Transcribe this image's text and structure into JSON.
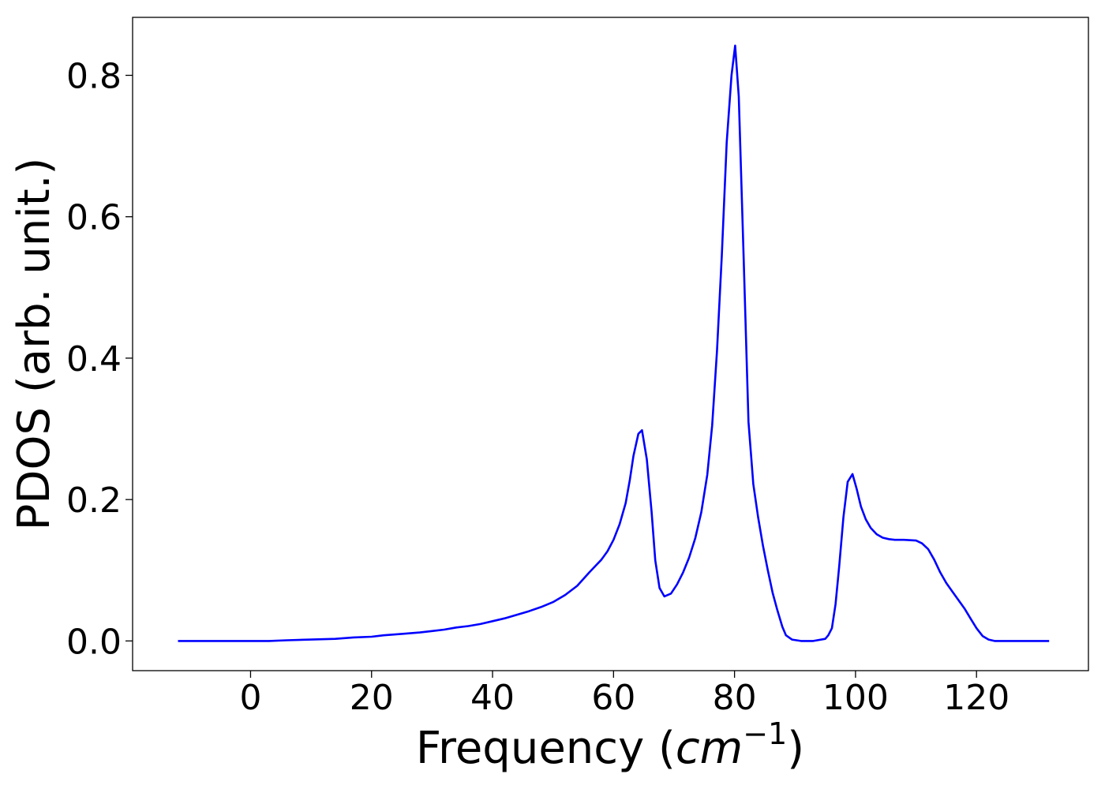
{
  "chart_data": {
    "type": "line",
    "xlabel_text": "Frequency (",
    "xlabel_math_base": "cm",
    "xlabel_math_exp": "−1",
    "xlabel_close": ")",
    "ylabel": "PDOS (arb. unit.)",
    "xlim": [
      -19.5,
      138.5
    ],
    "ylim": [
      -0.042,
      0.882
    ],
    "xticks": [
      0,
      20,
      40,
      60,
      80,
      100,
      120
    ],
    "xtick_labels": [
      "0",
      "20",
      "40",
      "60",
      "80",
      "100",
      "120"
    ],
    "yticks": [
      0.0,
      0.2,
      0.4,
      0.6,
      0.8
    ],
    "ytick_labels": [
      "0.0",
      "0.2",
      "0.4",
      "0.6",
      "0.8"
    ],
    "grid": false,
    "series": [
      {
        "color": "#0000ff",
        "x": [
          -12,
          -5,
          0,
          3,
          6,
          10,
          14,
          17,
          20,
          22,
          25,
          28,
          30,
          32,
          34,
          36,
          38,
          40,
          42,
          44,
          46,
          48,
          50,
          52,
          54,
          56,
          57,
          58,
          59,
          60,
          61,
          62,
          62.7,
          63.3,
          64.1,
          64.7,
          65.5,
          66.3,
          66.9,
          67.6,
          68.4,
          69.5,
          70.5,
          71.5,
          72.5,
          73.5,
          74.5,
          75.5,
          76.3,
          77.1,
          77.9,
          78.7,
          79.5,
          80.1,
          80.7,
          81.5,
          82.3,
          83.1,
          83.9,
          84.7,
          85.5,
          86.3,
          87.1,
          87.9,
          88.5,
          89.5,
          91,
          93,
          95,
          95.5,
          96.1,
          96.7,
          97.3,
          98.0,
          98.7,
          99.5,
          100.2,
          100.9,
          101.7,
          102.5,
          103.5,
          104.5,
          105.5,
          106.5,
          108,
          110,
          111,
          112,
          113,
          114,
          115,
          116,
          117,
          118,
          119,
          120,
          121,
          122,
          123,
          125,
          128,
          132
        ],
        "y": [
          0,
          0,
          0,
          0,
          0.001,
          0.002,
          0.003,
          0.005,
          0.006,
          0.008,
          0.01,
          0.012,
          0.014,
          0.016,
          0.019,
          0.021,
          0.024,
          0.028,
          0.032,
          0.037,
          0.042,
          0.048,
          0.055,
          0.065,
          0.078,
          0.097,
          0.106,
          0.115,
          0.127,
          0.143,
          0.165,
          0.195,
          0.228,
          0.262,
          0.293,
          0.298,
          0.257,
          0.182,
          0.114,
          0.075,
          0.063,
          0.067,
          0.08,
          0.097,
          0.118,
          0.145,
          0.182,
          0.235,
          0.305,
          0.41,
          0.545,
          0.705,
          0.8,
          0.842,
          0.77,
          0.545,
          0.31,
          0.222,
          0.175,
          0.135,
          0.1,
          0.068,
          0.043,
          0.02,
          0.008,
          0.002,
          0,
          0,
          0.003,
          0.008,
          0.018,
          0.052,
          0.105,
          0.175,
          0.225,
          0.236,
          0.215,
          0.19,
          0.172,
          0.16,
          0.151,
          0.146,
          0.144,
          0.143,
          0.143,
          0.142,
          0.138,
          0.13,
          0.115,
          0.097,
          0.082,
          0.07,
          0.058,
          0.046,
          0.032,
          0.018,
          0.007,
          0.002,
          0,
          0,
          0,
          0
        ]
      }
    ]
  }
}
